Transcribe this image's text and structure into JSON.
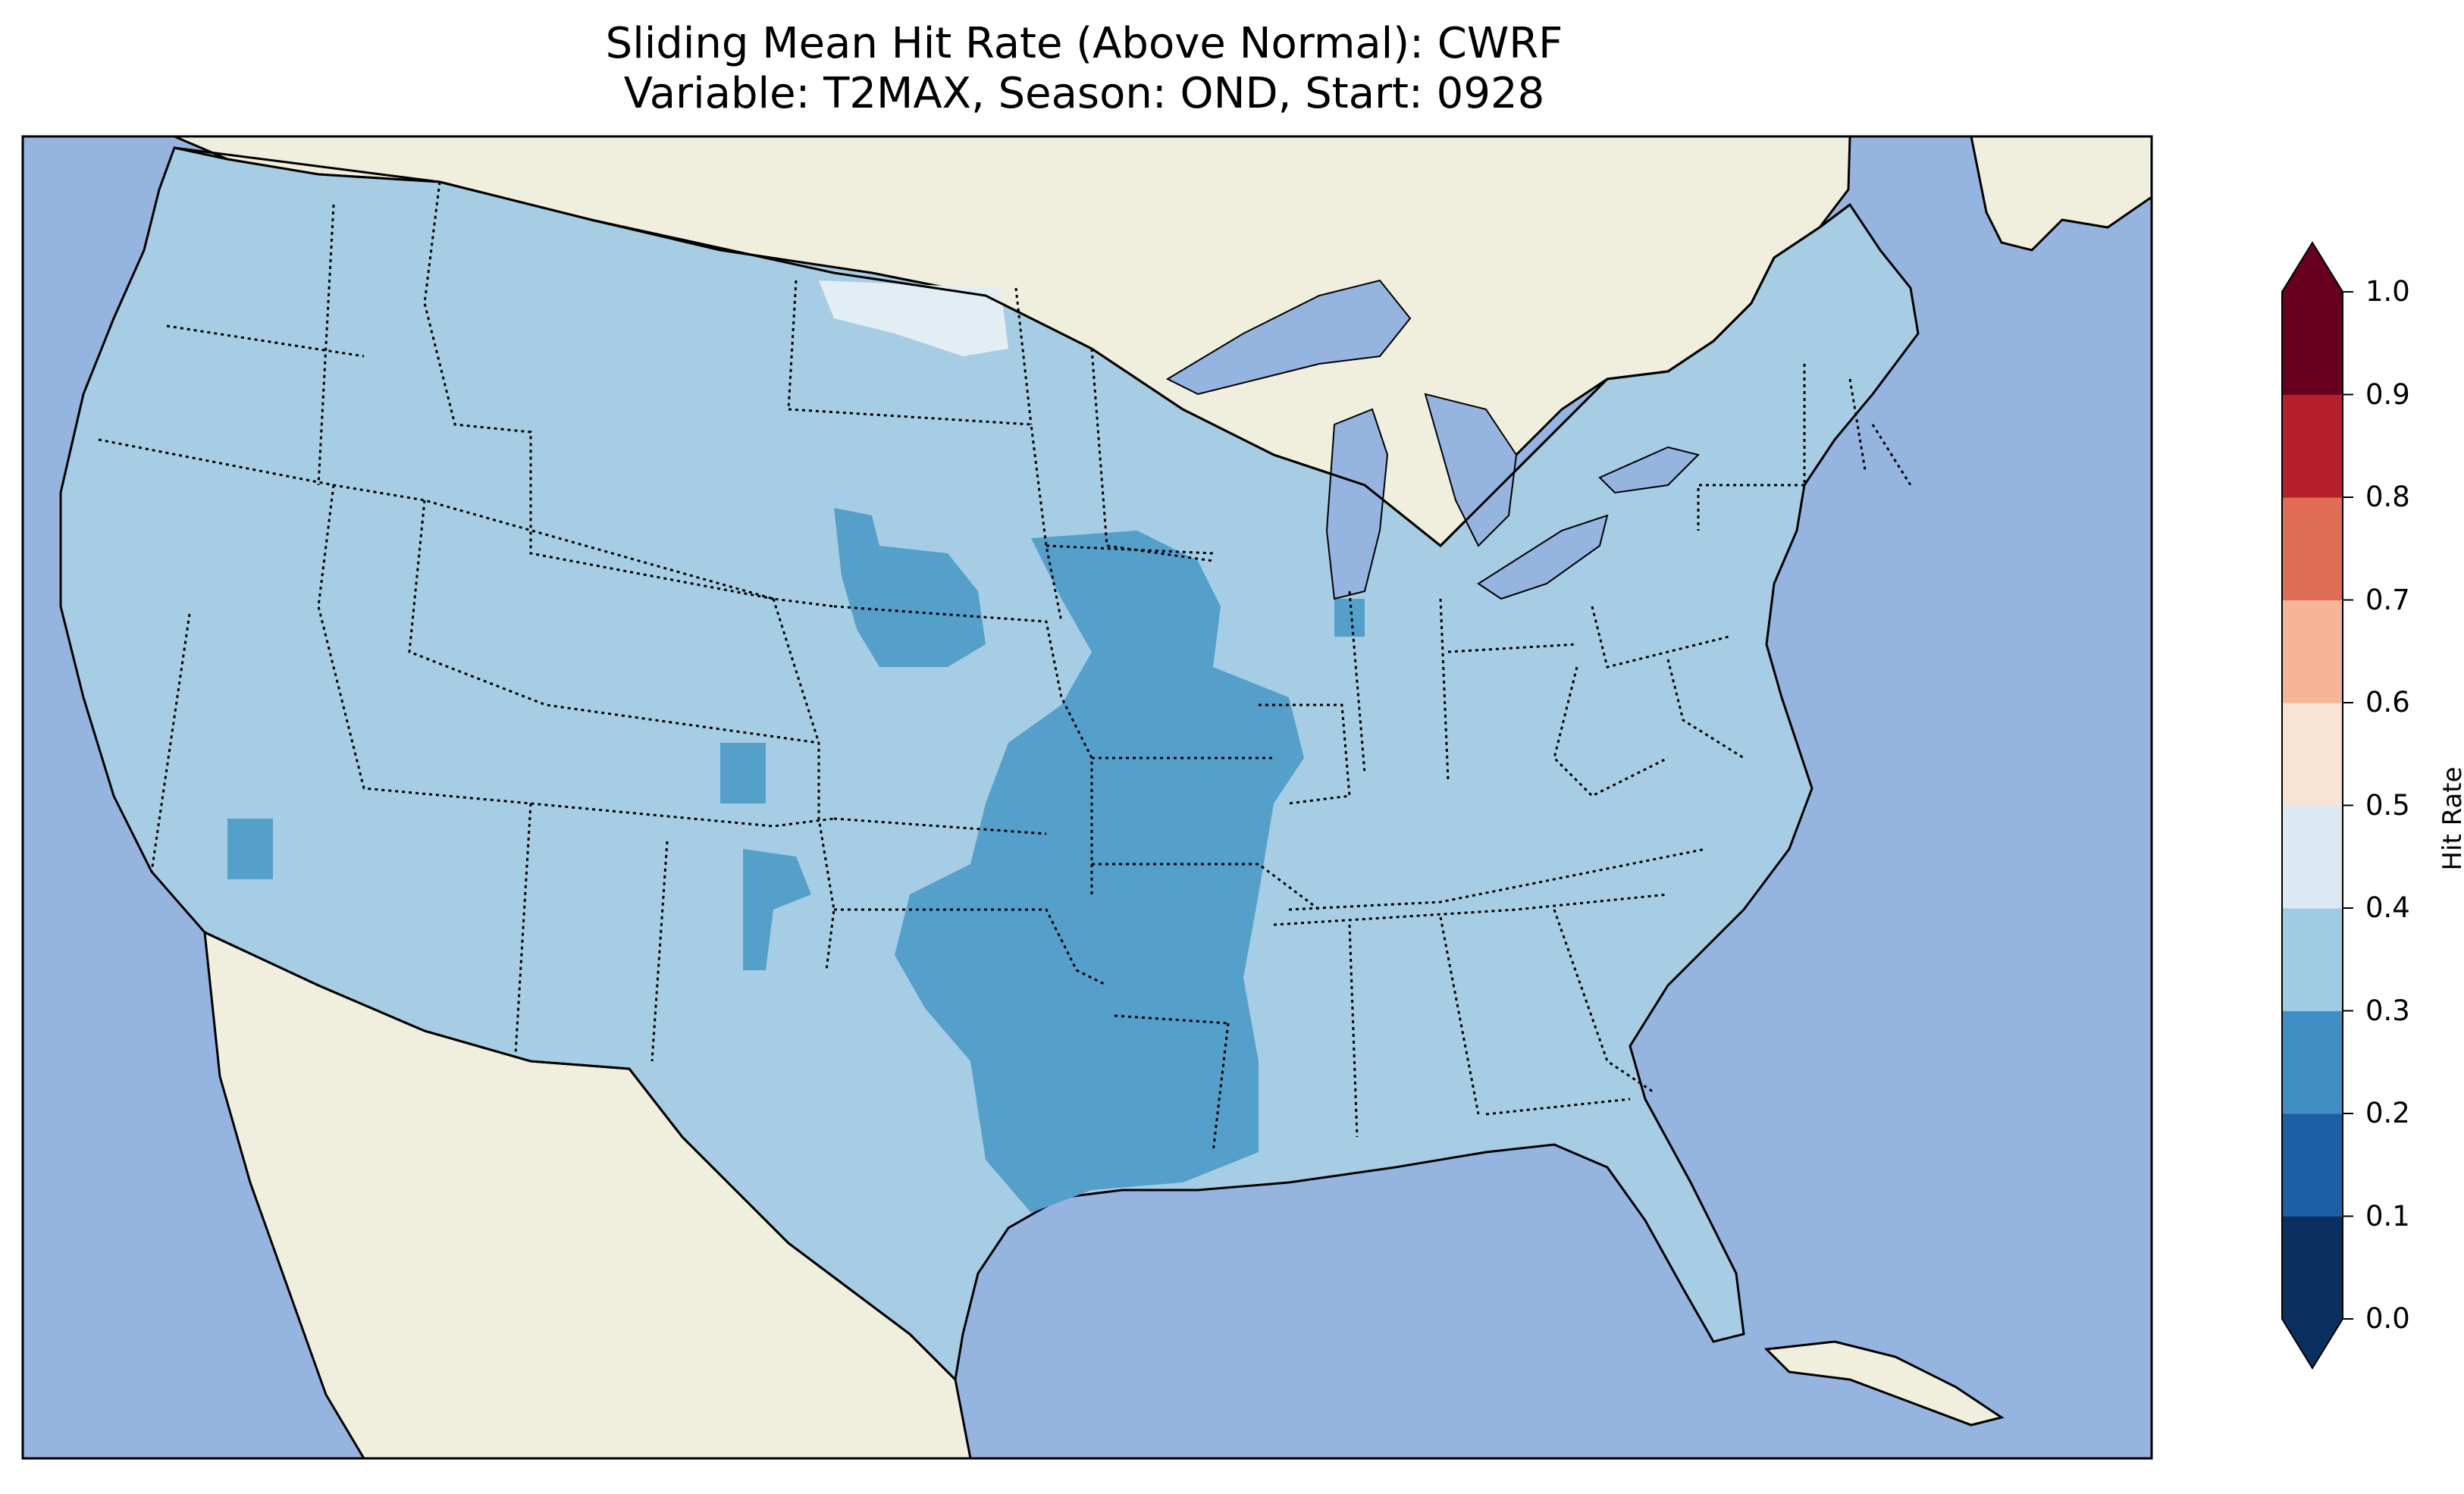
{
  "title": {
    "line1": "Sliding Mean Hit Rate (Above Normal): CWRF",
    "line2": "Variable: T2MAX, Season: OND, Start: 0928"
  },
  "map": {
    "ocean_color": "#96b4e0",
    "land_color": "#f0eedd",
    "region_color": "#a6cde3",
    "low_region_color": "#559fcb",
    "high_region_color": "#e3edf4"
  },
  "colorbar": {
    "label": "Hit Rate",
    "ticks": [
      "0.0",
      "0.1",
      "0.2",
      "0.3",
      "0.4",
      "0.5",
      "0.6",
      "0.7",
      "0.8",
      "0.9",
      "1.0"
    ],
    "colors": [
      "#0b3060",
      "#1d5fa4",
      "#3f8ec4",
      "#9fcbe3",
      "#dce9f2",
      "#f9e3d5",
      "#f5b596",
      "#df6c55",
      "#b71f2d",
      "#67001f"
    ],
    "over_color": "#67001f",
    "under_color": "#0b3060"
  }
}
